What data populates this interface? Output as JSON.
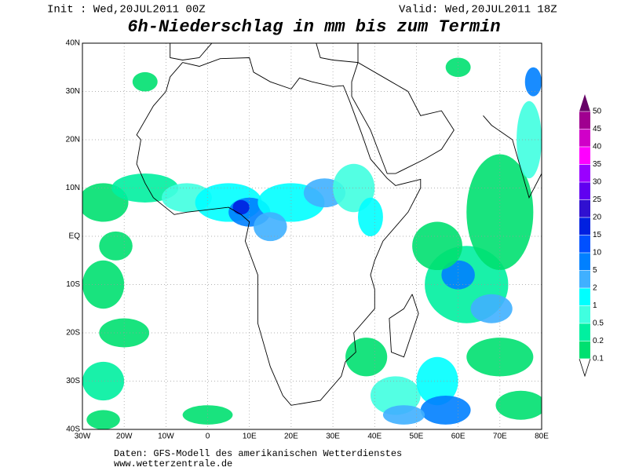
{
  "header": {
    "init": "Init : Wed,20JUL2011 00Z",
    "valid": "Valid: Wed,20JUL2011 18Z"
  },
  "title": "6h-Niederschlag in mm bis zum Termin",
  "map": {
    "lon_ticks": [
      {
        "value": -30,
        "label": "30W"
      },
      {
        "value": -20,
        "label": "20W"
      },
      {
        "value": -10,
        "label": "10W"
      },
      0,
      {
        "value": 10,
        "label": "10E"
      },
      {
        "value": 20,
        "label": "20E"
      },
      {
        "value": 30,
        "label": "30E"
      },
      {
        "value": 40,
        "label": "40E"
      },
      {
        "value": 50,
        "label": "50E"
      },
      {
        "value": 60,
        "label": "60E"
      },
      {
        "value": 70,
        "label": "70E"
      },
      {
        "value": 80,
        "label": "80E"
      }
    ],
    "lat_ticks": [
      {
        "value": 40,
        "label": "40N"
      },
      {
        "value": 30,
        "label": "30N"
      },
      {
        "value": 20,
        "label": "20N"
      },
      {
        "value": 10,
        "label": "10N"
      },
      {
        "value": 0,
        "label": "EQ"
      },
      {
        "value": -10,
        "label": "10S"
      },
      {
        "value": -20,
        "label": "20S"
      },
      {
        "value": -30,
        "label": "30S"
      },
      {
        "value": -40,
        "label": "40S"
      }
    ]
  },
  "colorbar": {
    "levels": [
      0.1,
      0.2,
      0.5,
      1,
      2,
      5,
      10,
      15,
      20,
      25,
      30,
      35,
      40,
      45,
      50
    ],
    "colors": [
      "#00e070",
      "#00f0a0",
      "#40ffe0",
      "#00ffff",
      "#40b0ff",
      "#0080ff",
      "#0050ff",
      "#0020e0",
      "#3010d0",
      "#6000f0",
      "#9a00ff",
      "#ff00ff",
      "#d000c8",
      "#a00090",
      "#660066"
    ]
  },
  "footer": {
    "source": "Daten: GFS-Modell des amerikanischen Wetterdienstes",
    "url": "www.wetterzentrale.de"
  }
}
